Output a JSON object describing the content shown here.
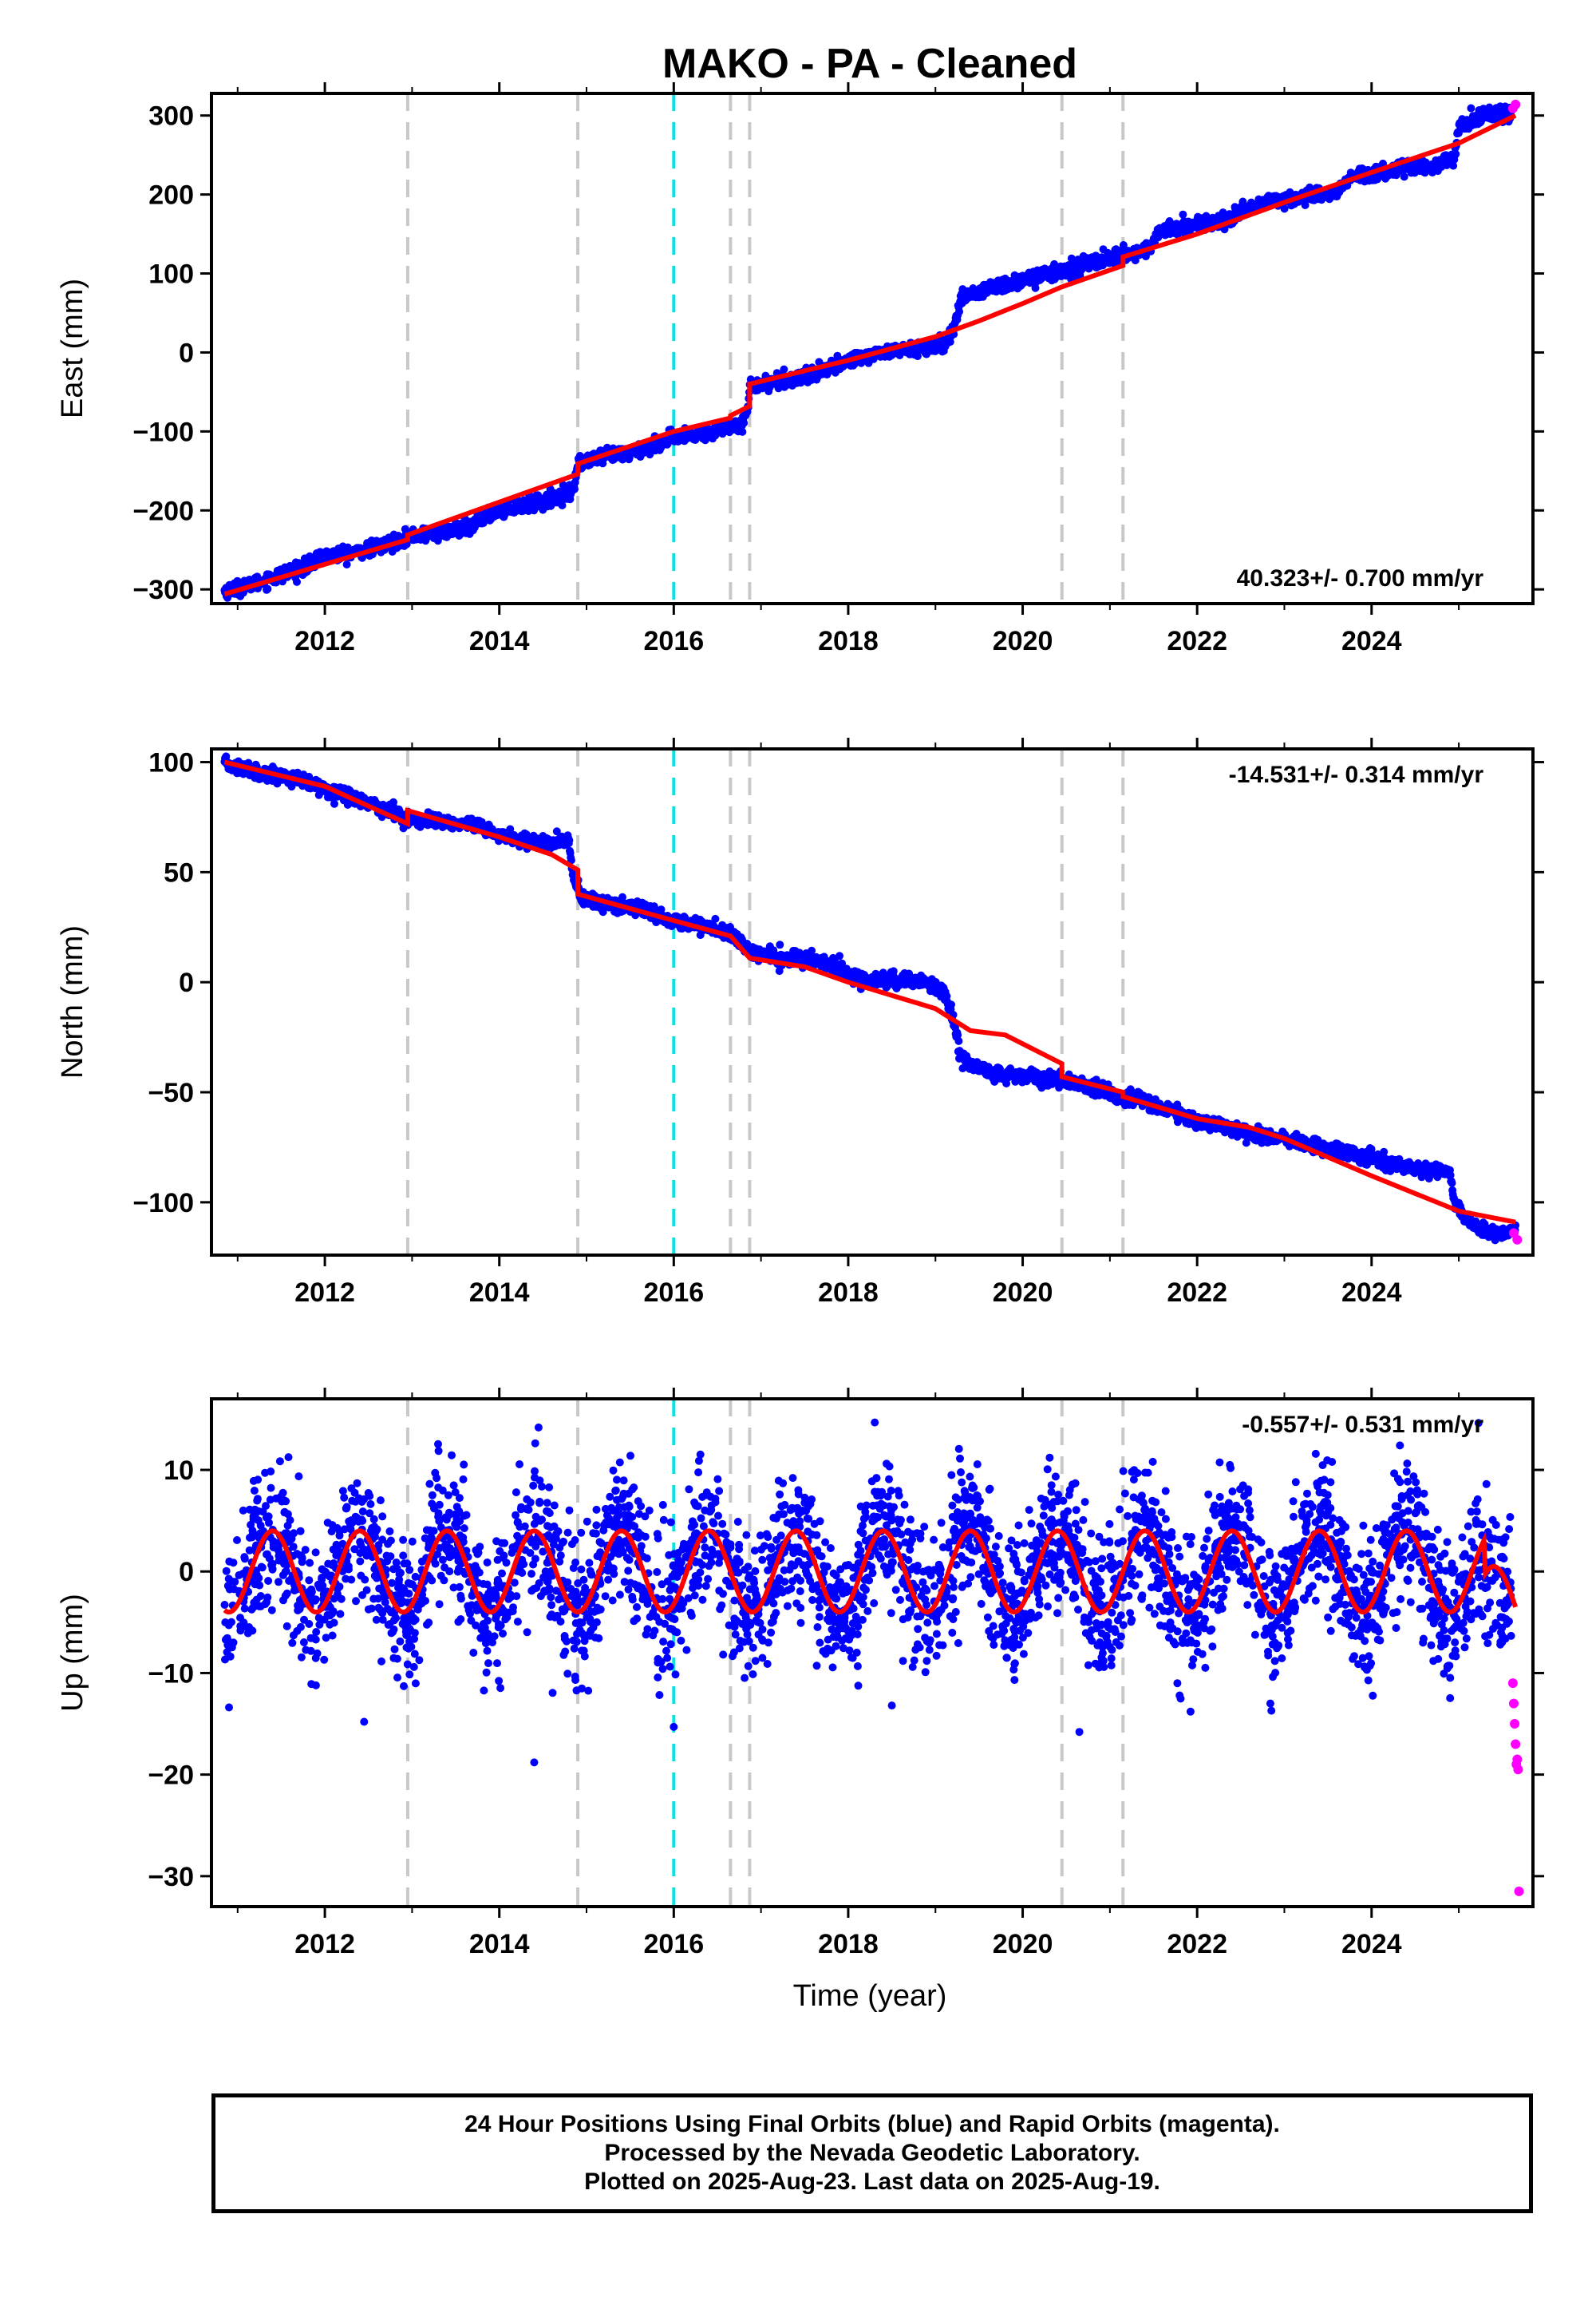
{
  "chart_data": {
    "type": "scatter",
    "title": "MAKO  - PA - Cleaned",
    "xlabel": "Time (year)",
    "x_ticks": [
      2012,
      2014,
      2016,
      2018,
      2020,
      2022,
      2024
    ],
    "xlim": [
      2010.7,
      2025.85
    ],
    "grid": false,
    "equipment_change_lines": {
      "gray": [
        2012.95,
        2014.9,
        2016.65,
        2016.87,
        2020.45,
        2021.15
      ],
      "cyan": [
        2016.0
      ]
    },
    "colors": {
      "final_orbits": "#0000ff",
      "rapid_orbits": "#ff00ff",
      "model_fit": "#ff0000",
      "equipment_line": "#c8c8c8",
      "special_line": "#00e5e5"
    },
    "panels": [
      {
        "id": "east",
        "ylabel": "East (mm)",
        "y_ticks": [
          -300,
          -200,
          -100,
          0,
          100,
          200,
          300
        ],
        "ylim": [
          -318,
          328
        ],
        "rate": "40.323+/- 0.700 mm/yr",
        "rate_pos": "bottom-right",
        "series_final": [
          [
            2010.85,
            -302
          ],
          [
            2011.2,
            -293
          ],
          [
            2011.5,
            -281
          ],
          [
            2011.85,
            -269
          ],
          [
            2011.95,
            -259
          ],
          [
            2012.3,
            -254
          ],
          [
            2012.7,
            -244
          ],
          [
            2012.95,
            -233
          ],
          [
            2013.3,
            -228
          ],
          [
            2013.7,
            -222
          ],
          [
            2013.75,
            -212
          ],
          [
            2014.0,
            -200
          ],
          [
            2014.3,
            -193
          ],
          [
            2014.6,
            -186
          ],
          [
            2014.85,
            -175
          ],
          [
            2014.9,
            -140
          ],
          [
            2015.2,
            -133
          ],
          [
            2015.6,
            -124
          ],
          [
            2015.95,
            -110
          ],
          [
            2016.3,
            -104
          ],
          [
            2016.6,
            -95
          ],
          [
            2016.8,
            -87
          ],
          [
            2016.85,
            -75
          ],
          [
            2016.87,
            -42
          ],
          [
            2017.2,
            -36
          ],
          [
            2017.6,
            -27
          ],
          [
            2017.8,
            -20
          ],
          [
            2018.0,
            -10
          ],
          [
            2018.4,
            0
          ],
          [
            2018.8,
            5
          ],
          [
            2019.1,
            8
          ],
          [
            2019.2,
            28
          ],
          [
            2019.3,
            70
          ],
          [
            2019.6,
            80
          ],
          [
            2020.0,
            92
          ],
          [
            2020.45,
            104
          ],
          [
            2020.8,
            114
          ],
          [
            2021.15,
            124
          ],
          [
            2021.3,
            125
          ],
          [
            2021.5,
            137
          ],
          [
            2021.55,
            152
          ],
          [
            2021.9,
            161
          ],
          [
            2022.2,
            165
          ],
          [
            2022.4,
            168
          ],
          [
            2022.5,
            181
          ],
          [
            2022.9,
            193
          ],
          [
            2023.3,
            198
          ],
          [
            2023.6,
            202
          ],
          [
            2023.7,
            219
          ],
          [
            2024.0,
            228
          ],
          [
            2024.4,
            233
          ],
          [
            2024.7,
            235
          ],
          [
            2024.95,
            248
          ],
          [
            2025.0,
            287
          ],
          [
            2025.3,
            300
          ],
          [
            2025.6,
            304
          ]
        ],
        "series_rapid": [
          [
            2025.62,
            309
          ],
          [
            2025.65,
            314
          ]
        ],
        "series_model": [
          [
            2010.85,
            -306
          ],
          [
            2012.95,
            -237
          ],
          [
            2012.95,
            -231
          ],
          [
            2014.9,
            -154
          ],
          [
            2014.9,
            -141
          ],
          [
            2016.0,
            -100
          ],
          [
            2016.65,
            -83
          ],
          [
            2016.65,
            -80
          ],
          [
            2016.87,
            -68
          ],
          [
            2016.87,
            -40
          ],
          [
            2018.0,
            -10
          ],
          [
            2019.0,
            20
          ],
          [
            2019.5,
            40
          ],
          [
            2020.0,
            62
          ],
          [
            2020.45,
            83
          ],
          [
            2021.15,
            110
          ],
          [
            2021.15,
            121
          ],
          [
            2022.0,
            150
          ],
          [
            2023.0,
            190
          ],
          [
            2024.0,
            228
          ],
          [
            2025.0,
            265
          ],
          [
            2025.65,
            300
          ]
        ]
      },
      {
        "id": "north",
        "ylabel": "North (mm)",
        "y_ticks": [
          -100,
          -50,
          0,
          50,
          100
        ],
        "ylim": [
          -124,
          106
        ],
        "rate": "-14.531+/- 0.314 mm/yr",
        "rate_pos": "top-right",
        "series_final": [
          [
            2010.85,
            99
          ],
          [
            2011.2,
            96
          ],
          [
            2011.6,
            93
          ],
          [
            2012.0,
            88
          ],
          [
            2012.5,
            82
          ],
          [
            2012.95,
            74
          ],
          [
            2013.3,
            73
          ],
          [
            2013.7,
            71
          ],
          [
            2014.0,
            67
          ],
          [
            2014.3,
            64
          ],
          [
            2014.6,
            63
          ],
          [
            2014.8,
            64
          ],
          [
            2014.85,
            48
          ],
          [
            2014.95,
            38
          ],
          [
            2015.3,
            35
          ],
          [
            2015.6,
            34
          ],
          [
            2015.95,
            28
          ],
          [
            2016.3,
            26
          ],
          [
            2016.65,
            22
          ],
          [
            2016.87,
            14
          ],
          [
            2017.2,
            11
          ],
          [
            2017.6,
            10
          ],
          [
            2017.9,
            6
          ],
          [
            2018.0,
            3
          ],
          [
            2018.3,
            1
          ],
          [
            2018.6,
            1
          ],
          [
            2018.9,
            0
          ],
          [
            2019.1,
            -4
          ],
          [
            2019.2,
            -17
          ],
          [
            2019.3,
            -35
          ],
          [
            2019.6,
            -41
          ],
          [
            2020.0,
            -43
          ],
          [
            2020.45,
            -44
          ],
          [
            2020.8,
            -48
          ],
          [
            2021.15,
            -52
          ],
          [
            2021.3,
            -52
          ],
          [
            2021.6,
            -57
          ],
          [
            2022.0,
            -63
          ],
          [
            2022.4,
            -67
          ],
          [
            2022.8,
            -70
          ],
          [
            2023.2,
            -73
          ],
          [
            2023.6,
            -77
          ],
          [
            2024.0,
            -80
          ],
          [
            2024.5,
            -85
          ],
          [
            2024.9,
            -86
          ],
          [
            2024.95,
            -101
          ],
          [
            2025.2,
            -112
          ],
          [
            2025.5,
            -115
          ],
          [
            2025.65,
            -112
          ]
        ],
        "series_rapid": [
          [
            2025.63,
            -114
          ],
          [
            2025.67,
            -117
          ]
        ],
        "series_model": [
          [
            2010.85,
            100
          ],
          [
            2012.0,
            89
          ],
          [
            2012.95,
            72
          ],
          [
            2012.95,
            78
          ],
          [
            2014.0,
            66
          ],
          [
            2014.6,
            58
          ],
          [
            2014.9,
            51
          ],
          [
            2014.9,
            40
          ],
          [
            2016.0,
            28
          ],
          [
            2016.65,
            21
          ],
          [
            2016.87,
            11
          ],
          [
            2017.5,
            7
          ],
          [
            2018.0,
            0
          ],
          [
            2018.5,
            -6
          ],
          [
            2019.0,
            -12
          ],
          [
            2019.4,
            -22
          ],
          [
            2019.8,
            -24
          ],
          [
            2020.45,
            -37
          ],
          [
            2020.45,
            -43
          ],
          [
            2021.15,
            -50
          ],
          [
            2021.15,
            -52
          ],
          [
            2022.0,
            -62
          ],
          [
            2022.6,
            -66
          ],
          [
            2023.0,
            -71
          ],
          [
            2024.0,
            -88
          ],
          [
            2025.0,
            -104
          ],
          [
            2025.65,
            -109
          ]
        ]
      },
      {
        "id": "up",
        "ylabel": "Up (mm)",
        "y_ticks": [
          -30,
          -20,
          -10,
          0,
          10
        ],
        "ylim": [
          -33,
          17
        ],
        "rate": "-0.557+/- 0.531 mm/yr",
        "rate_pos": "top-right",
        "series_final_seed": 7,
        "series_final_count": 3400,
        "series_final_std": 3.4,
        "series_rapid": [
          [
            2025.62,
            -11
          ],
          [
            2025.63,
            -13
          ],
          [
            2025.64,
            -15
          ],
          [
            2025.65,
            -17
          ],
          [
            2025.66,
            -19
          ],
          [
            2025.67,
            -18.5
          ],
          [
            2025.68,
            -19.5
          ],
          [
            2025.69,
            -31.5
          ]
        ],
        "series_model_seasonal": {
          "amplitude": 4.0,
          "offset": 0.0,
          "phase_year": 0.15
        }
      }
    ]
  },
  "footer": {
    "line1": "24 Hour Positions Using Final Orbits (blue) and Rapid Orbits (magenta).",
    "line2": "Processed by the Nevada Geodetic Laboratory.",
    "line3": "Plotted on 2025-Aug-23. Last data on 2025-Aug-19."
  }
}
